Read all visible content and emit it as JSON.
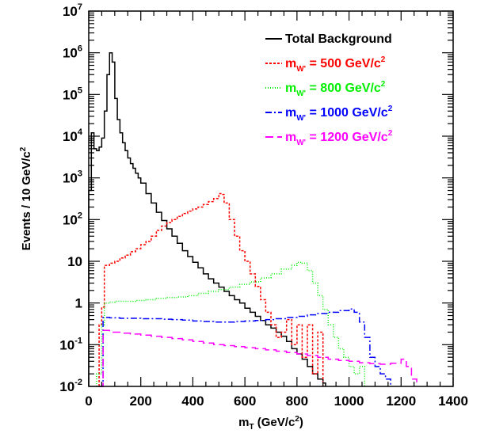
{
  "chart_data": {
    "type": "line",
    "xlabel": {
      "main": "m",
      "sub": "T",
      "rest": " (GeV/c",
      "sup": "2",
      "end": ")"
    },
    "ylabel": {
      "main": "Events / 10 GeV/c",
      "sup": "2"
    },
    "xlim": [
      0,
      1400
    ],
    "ylim": [
      0.01,
      10000000
    ],
    "yscale": "log",
    "x_ticks": [
      "0",
      "200",
      "400",
      "600",
      "800",
      "1000",
      "1200",
      "1400"
    ],
    "y_ticks": [
      {
        "base": "10",
        "exp": "-2",
        "value": 0.01
      },
      {
        "base": "10",
        "exp": "-1",
        "value": 0.1
      },
      {
        "base": "1",
        "exp": "",
        "value": 1
      },
      {
        "base": "10",
        "exp": "",
        "value": 10
      },
      {
        "base": "10",
        "exp": "2",
        "value": 100
      },
      {
        "base": "10",
        "exp": "3",
        "value": 1000
      },
      {
        "base": "10",
        "exp": "4",
        "value": 10000
      },
      {
        "base": "10",
        "exp": "5",
        "value": 100000
      },
      {
        "base": "10",
        "exp": "6",
        "value": 1000000
      },
      {
        "base": "10",
        "exp": "7",
        "value": 10000000
      }
    ],
    "legend_position": "top-right",
    "series": [
      {
        "legend": {
          "main": "Total Background"
        },
        "color": "#000000",
        "dash": "none",
        "x": [
          0,
          10,
          20,
          30,
          40,
          50,
          60,
          70,
          80,
          90,
          100,
          110,
          120,
          130,
          140,
          150,
          160,
          170,
          180,
          190,
          200,
          220,
          240,
          260,
          280,
          300,
          320,
          340,
          360,
          380,
          400,
          420,
          440,
          460,
          480,
          500,
          520,
          540,
          560,
          580,
          600,
          620,
          640,
          660,
          680,
          700,
          720,
          740,
          760,
          780,
          800,
          820,
          840,
          860,
          880,
          900,
          910
        ],
        "y": [
          500,
          12000,
          5000,
          4500,
          5500,
          9000,
          40000,
          300000,
          1000000,
          600000,
          80000,
          25000,
          12000,
          7000,
          4500,
          3000,
          2200,
          1700,
          1300,
          1000,
          750,
          420,
          250,
          150,
          95,
          60,
          40,
          27,
          18,
          13,
          9.5,
          7,
          5,
          3.8,
          3,
          2.4,
          1.9,
          1.5,
          1.2,
          1,
          0.75,
          0.6,
          0.48,
          0.38,
          0.3,
          0.25,
          0.2,
          0.16,
          0.12,
          0.08,
          0.06,
          0.045,
          0.03,
          0.02,
          0.015,
          0.012,
          0.01
        ]
      },
      {
        "legend": {
          "main": "m",
          "sub": "W'",
          "rest": " =   500 GeV/c",
          "sup": "2"
        },
        "color": "#ff0000",
        "dash": "3 2",
        "x": [
          40,
          50,
          60,
          80,
          100,
          120,
          140,
          160,
          180,
          200,
          220,
          240,
          260,
          280,
          300,
          320,
          340,
          360,
          380,
          400,
          420,
          440,
          460,
          480,
          500,
          510,
          520,
          540,
          560,
          580,
          600,
          620,
          640,
          660,
          680,
          700,
          720,
          740,
          760,
          780,
          800,
          820,
          840,
          860,
          880,
          900
        ],
        "y": [
          0.3,
          0.8,
          8,
          9,
          10,
          12,
          14,
          17,
          20,
          25,
          30,
          40,
          55,
          70,
          85,
          100,
          120,
          140,
          160,
          180,
          200,
          230,
          270,
          320,
          420,
          400,
          250,
          100,
          40,
          18,
          10,
          5,
          2.5,
          1.2,
          0.6,
          0.3,
          0.15,
          0.2,
          0.4,
          0.1,
          0.3,
          0.05,
          0.3,
          0.02,
          0.2,
          0.01
        ]
      },
      {
        "legend": {
          "main": "m",
          "sub": "W'",
          "rest": " =   800 GeV/c",
          "sup": "2"
        },
        "color": "#00ee00",
        "dash": "1 2",
        "x": [
          30,
          50,
          60,
          80,
          100,
          140,
          180,
          220,
          260,
          300,
          340,
          380,
          420,
          460,
          500,
          540,
          580,
          620,
          660,
          700,
          740,
          780,
          800,
          820,
          840,
          860,
          880,
          900,
          920,
          940,
          960,
          980,
          1000,
          1020,
          1040,
          1060
        ],
        "y": [
          0.02,
          0.3,
          1,
          1.05,
          1.1,
          1.1,
          1.15,
          1.2,
          1.3,
          1.35,
          1.4,
          1.5,
          1.7,
          1.9,
          2.1,
          2.4,
          2.8,
          3.2,
          4,
          5,
          6.5,
          8,
          9.5,
          9,
          6,
          3,
          1.5,
          0.7,
          0.3,
          0.15,
          0.08,
          0.05,
          0.03,
          0.02,
          0.03,
          0.01
        ]
      },
      {
        "legend": {
          "main": "m",
          "sub": "W'",
          "rest": " = 1000 GeV/c",
          "sup": "2"
        },
        "color": "#0000ff",
        "dash": "8 3 2 3",
        "x": [
          40,
          55,
          80,
          120,
          160,
          200,
          240,
          280,
          320,
          360,
          400,
          440,
          480,
          520,
          560,
          600,
          640,
          680,
          720,
          760,
          800,
          840,
          880,
          920,
          960,
          1000,
          1020,
          1040,
          1060,
          1080,
          1100,
          1120,
          1140,
          1160
        ],
        "y": [
          0.01,
          0.45,
          0.44,
          0.43,
          0.43,
          0.42,
          0.42,
          0.41,
          0.4,
          0.39,
          0.37,
          0.36,
          0.35,
          0.35,
          0.36,
          0.37,
          0.38,
          0.4,
          0.42,
          0.45,
          0.48,
          0.52,
          0.56,
          0.6,
          0.66,
          0.72,
          0.6,
          0.35,
          0.15,
          0.05,
          0.03,
          0.02,
          0.015,
          0.01
        ]
      },
      {
        "legend": {
          "main": "m",
          "sub": "W'",
          "rest": " = 1200 GeV/c",
          "sup": "2"
        },
        "color": "#ff00ff",
        "dash": "10 5",
        "x": [
          40,
          55,
          80,
          120,
          160,
          200,
          240,
          280,
          320,
          360,
          400,
          440,
          480,
          520,
          560,
          600,
          640,
          680,
          720,
          760,
          800,
          840,
          880,
          920,
          960,
          1000,
          1040,
          1080,
          1120,
          1160,
          1200,
          1220,
          1240,
          1260
        ],
        "y": [
          0.01,
          0.22,
          0.2,
          0.19,
          0.18,
          0.17,
          0.16,
          0.15,
          0.14,
          0.13,
          0.12,
          0.11,
          0.1,
          0.095,
          0.09,
          0.085,
          0.08,
          0.075,
          0.07,
          0.065,
          0.06,
          0.055,
          0.05,
          0.045,
          0.042,
          0.04,
          0.037,
          0.035,
          0.034,
          0.036,
          0.045,
          0.03,
          0.015,
          0.01
        ]
      }
    ]
  }
}
